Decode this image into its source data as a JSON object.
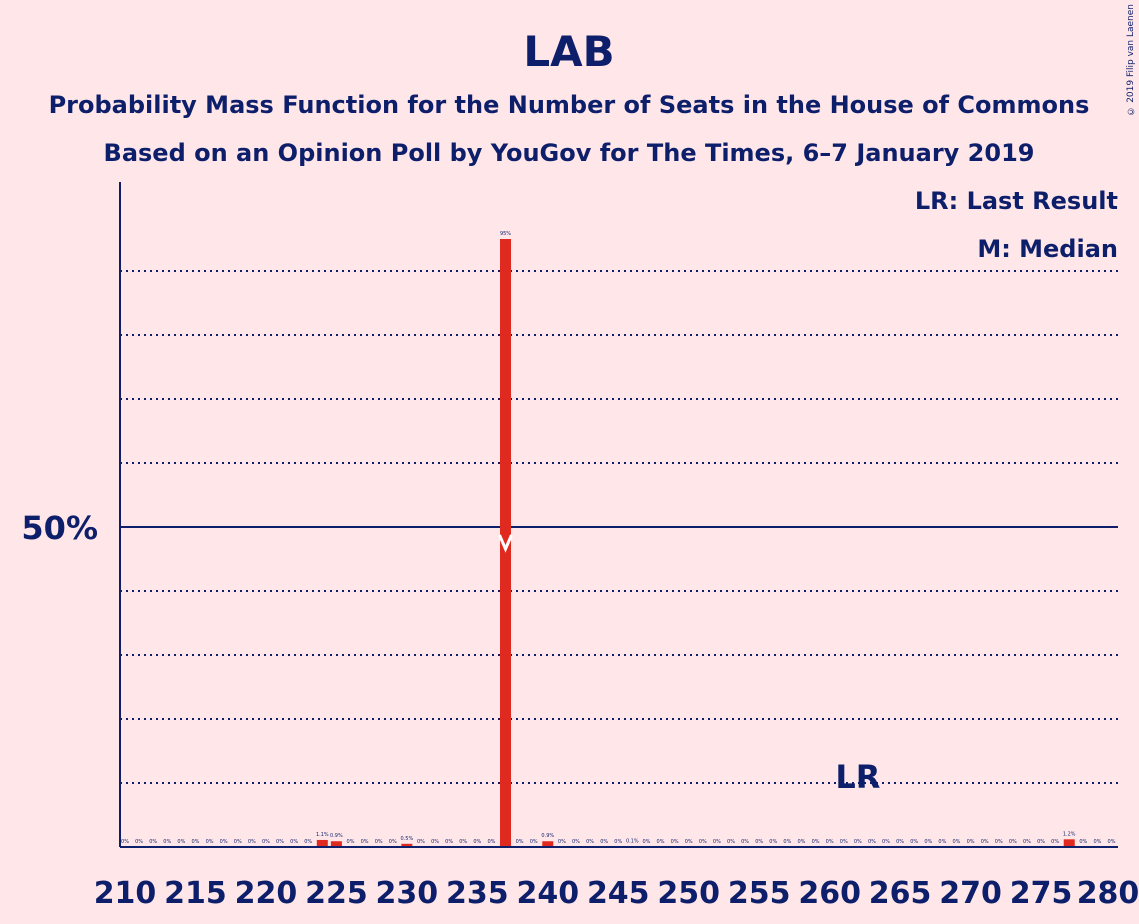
{
  "copyright": "© 2019 Filip van Laenen",
  "legend": {
    "lr": "LR: Last Result",
    "m": "M: Median"
  },
  "colors": {
    "background": "#FFE6E8",
    "text": "#0D1F6B",
    "bar": "#E0291F",
    "axis": "#0D1F6B"
  },
  "chart_data": {
    "type": "bar",
    "title": "LAB",
    "subtitle": "Probability Mass Function for the Number of Seats in the House of Commons",
    "subtitle2": "Based on an Opinion Poll by YouGov for The Times, 6–7 January 2019",
    "xlim": [
      210,
      280
    ],
    "ylim": [
      0,
      100
    ],
    "gridlines": [
      10,
      20,
      30,
      40,
      60,
      70,
      80,
      90
    ],
    "reference_line": {
      "value": 50,
      "label": "50%"
    },
    "x_ticks": [
      "210",
      "215",
      "220",
      "225",
      "230",
      "235",
      "240",
      "245",
      "250",
      "255",
      "260",
      "265",
      "270",
      "275",
      "280"
    ],
    "median": 237,
    "last_result": {
      "seat": 262,
      "label": "LR"
    },
    "bars": [
      {
        "x": 210,
        "v": 0,
        "label": "0%"
      },
      {
        "x": 211,
        "v": 0,
        "label": "0%"
      },
      {
        "x": 212,
        "v": 0,
        "label": "0%"
      },
      {
        "x": 213,
        "v": 0,
        "label": "0%"
      },
      {
        "x": 214,
        "v": 0,
        "label": "0%"
      },
      {
        "x": 215,
        "v": 0,
        "label": "0%"
      },
      {
        "x": 216,
        "v": 0,
        "label": "0%"
      },
      {
        "x": 217,
        "v": 0,
        "label": "0%"
      },
      {
        "x": 218,
        "v": 0,
        "label": "0%"
      },
      {
        "x": 219,
        "v": 0,
        "label": "0%"
      },
      {
        "x": 220,
        "v": 0,
        "label": "0%"
      },
      {
        "x": 221,
        "v": 0,
        "label": "0%"
      },
      {
        "x": 222,
        "v": 0,
        "label": "0%"
      },
      {
        "x": 223,
        "v": 0,
        "label": "0%"
      },
      {
        "x": 224,
        "v": 1.1,
        "label": "1.1%"
      },
      {
        "x": 225,
        "v": 0.9,
        "label": "0.9%"
      },
      {
        "x": 226,
        "v": 0,
        "label": "0%"
      },
      {
        "x": 227,
        "v": 0,
        "label": "0%"
      },
      {
        "x": 228,
        "v": 0,
        "label": "0%"
      },
      {
        "x": 229,
        "v": 0,
        "label": "0%"
      },
      {
        "x": 230,
        "v": 0.5,
        "label": "0.5%"
      },
      {
        "x": 231,
        "v": 0,
        "label": "0%"
      },
      {
        "x": 232,
        "v": 0,
        "label": "0%"
      },
      {
        "x": 233,
        "v": 0,
        "label": "0%"
      },
      {
        "x": 234,
        "v": 0,
        "label": "0%"
      },
      {
        "x": 235,
        "v": 0,
        "label": "0%"
      },
      {
        "x": 236,
        "v": 0,
        "label": "0%"
      },
      {
        "x": 237,
        "v": 95,
        "label": "95%"
      },
      {
        "x": 238,
        "v": 0,
        "label": "0%"
      },
      {
        "x": 239,
        "v": 0,
        "label": "0%"
      },
      {
        "x": 240,
        "v": 0.9,
        "label": "0.9%"
      },
      {
        "x": 241,
        "v": 0,
        "label": "0%"
      },
      {
        "x": 242,
        "v": 0,
        "label": "0%"
      },
      {
        "x": 243,
        "v": 0,
        "label": "0%"
      },
      {
        "x": 244,
        "v": 0,
        "label": "0%"
      },
      {
        "x": 245,
        "v": 0,
        "label": "0%"
      },
      {
        "x": 246,
        "v": 0.1,
        "label": "0.1%"
      },
      {
        "x": 247,
        "v": 0,
        "label": "0%"
      },
      {
        "x": 248,
        "v": 0,
        "label": "0%"
      },
      {
        "x": 249,
        "v": 0,
        "label": "0%"
      },
      {
        "x": 250,
        "v": 0,
        "label": "0%"
      },
      {
        "x": 251,
        "v": 0,
        "label": "0%"
      },
      {
        "x": 252,
        "v": 0,
        "label": "0%"
      },
      {
        "x": 253,
        "v": 0,
        "label": "0%"
      },
      {
        "x": 254,
        "v": 0,
        "label": "0%"
      },
      {
        "x": 255,
        "v": 0,
        "label": "0%"
      },
      {
        "x": 256,
        "v": 0,
        "label": "0%"
      },
      {
        "x": 257,
        "v": 0,
        "label": "0%"
      },
      {
        "x": 258,
        "v": 0,
        "label": "0%"
      },
      {
        "x": 259,
        "v": 0,
        "label": "0%"
      },
      {
        "x": 260,
        "v": 0,
        "label": "0%"
      },
      {
        "x": 261,
        "v": 0,
        "label": "0%"
      },
      {
        "x": 262,
        "v": 0,
        "label": "0%"
      },
      {
        "x": 263,
        "v": 0,
        "label": "0%"
      },
      {
        "x": 264,
        "v": 0,
        "label": "0%"
      },
      {
        "x": 265,
        "v": 0,
        "label": "0%"
      },
      {
        "x": 266,
        "v": 0,
        "label": "0%"
      },
      {
        "x": 267,
        "v": 0,
        "label": "0%"
      },
      {
        "x": 268,
        "v": 0,
        "label": "0%"
      },
      {
        "x": 269,
        "v": 0,
        "label": "0%"
      },
      {
        "x": 270,
        "v": 0,
        "label": "0%"
      },
      {
        "x": 271,
        "v": 0,
        "label": "0%"
      },
      {
        "x": 272,
        "v": 0,
        "label": "0%"
      },
      {
        "x": 273,
        "v": 0,
        "label": "0%"
      },
      {
        "x": 274,
        "v": 0,
        "label": "0%"
      },
      {
        "x": 275,
        "v": 0,
        "label": "0%"
      },
      {
        "x": 276,
        "v": 0,
        "label": "0%"
      },
      {
        "x": 277,
        "v": 1.2,
        "label": "1.2%"
      },
      {
        "x": 278,
        "v": 0,
        "label": "0%"
      },
      {
        "x": 279,
        "v": 0,
        "label": "0%"
      },
      {
        "x": 280,
        "v": 0,
        "label": "0%"
      }
    ]
  }
}
